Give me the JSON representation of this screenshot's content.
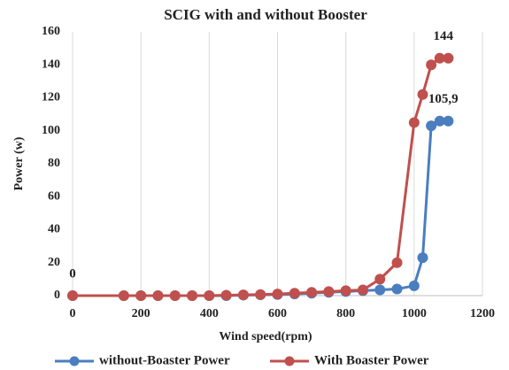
{
  "chart_data": {
    "type": "line",
    "title": "SCIG with and without Booster",
    "x_label": "Wind  speed(rpm)",
    "y_label": "Power (w)",
    "x": [
      0,
      150,
      200,
      250,
      300,
      350,
      400,
      450,
      500,
      550,
      600,
      650,
      700,
      750,
      800,
      850,
      900,
      950,
      1000,
      1025,
      1050,
      1075,
      1100
    ],
    "series": [
      {
        "name": "without-Boaster Power",
        "color": "#4a7ebf",
        "values": [
          0,
          0,
          0,
          0,
          0,
          0,
          0,
          0,
          0.3,
          0.5,
          0.7,
          1,
          1.5,
          2,
          2.5,
          3,
          3.5,
          4,
          6,
          23,
          103,
          105.9,
          105.9
        ],
        "value_labels": [
          null,
          null,
          null,
          null,
          null,
          null,
          null,
          null,
          null,
          null,
          null,
          null,
          null,
          null,
          null,
          null,
          null,
          null,
          null,
          null,
          null,
          "105,9",
          null
        ]
      },
      {
        "name": "With Boaster Power",
        "color": "#c0504d",
        "values": [
          0,
          0,
          0,
          0,
          0,
          0,
          0,
          0.3,
          0.5,
          0.7,
          1,
          1.5,
          2,
          2.5,
          3,
          3.5,
          10,
          20,
          105,
          122,
          140,
          144,
          144
        ],
        "value_labels": [
          "0",
          null,
          null,
          null,
          null,
          null,
          null,
          null,
          null,
          null,
          null,
          null,
          null,
          null,
          null,
          null,
          null,
          null,
          null,
          null,
          null,
          "144",
          null
        ]
      }
    ],
    "xlim": [
      0,
      1200
    ],
    "xticks": [
      0,
      200,
      400,
      600,
      800,
      1000,
      1200
    ],
    "ylim": [
      0,
      160
    ],
    "yticks": [
      0,
      20,
      40,
      60,
      80,
      100,
      120,
      140,
      160
    ],
    "grid": "x",
    "legend": "bottom"
  }
}
